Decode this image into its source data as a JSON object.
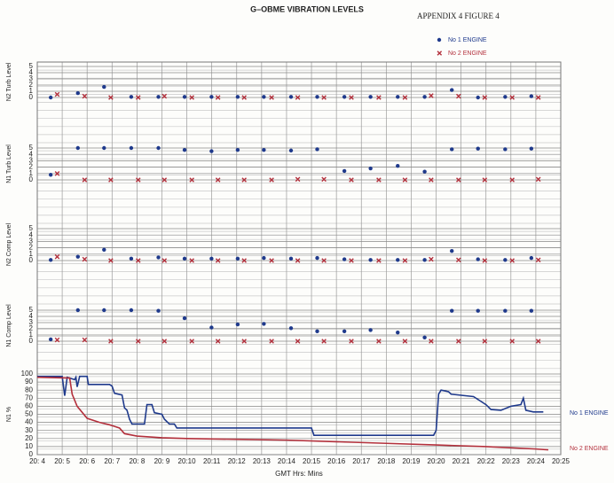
{
  "header": {
    "title": "G–OBME VIBRATION LEVELS",
    "figure": "APPENDIX 4  FIGURE   4"
  },
  "chart_data": [
    {
      "type": "scatter",
      "y_label": "N2 Turb Level",
      "ylim": [
        0,
        5
      ],
      "yticks": [
        0,
        1,
        2,
        3,
        4,
        5
      ],
      "series": [
        {
          "name": "No 1 ENGINE",
          "color": "#1f3a8c",
          "marker": "o",
          "x": [
            4.54,
            5.63,
            6.68,
            7.77,
            8.86,
            9.91,
            10.99,
            12.04,
            13.09,
            14.18,
            15.23,
            16.32,
            17.37,
            18.46,
            19.54,
            20.63,
            21.68,
            22.77,
            23.82
          ],
          "values": [
            0,
            0.7,
            1.7,
            0.1,
            0.1,
            0.1,
            0.1,
            0.1,
            0.1,
            0.1,
            0.1,
            0.1,
            0.1,
            0.1,
            0.1,
            1.2,
            0,
            0.1,
            0.2
          ]
        },
        {
          "name": "No 2 ENGINE",
          "color": "#b3303c",
          "marker": "x",
          "x": [
            4.8,
            5.9,
            6.95,
            8.05,
            9.1,
            10.2,
            11.25,
            12.3,
            13.4,
            14.45,
            15.5,
            16.6,
            17.7,
            18.75,
            19.8,
            20.9,
            21.95,
            23.05,
            24.1
          ],
          "values": [
            0.5,
            0.2,
            0,
            0,
            0.2,
            0,
            0,
            0,
            0,
            0,
            0,
            0,
            0,
            0,
            0.3,
            0.2,
            0,
            0,
            0
          ]
        }
      ]
    },
    {
      "type": "scatter",
      "y_label": "N1 Turb Level",
      "ylim": [
        0,
        5
      ],
      "yticks": [
        0,
        1,
        2,
        3,
        4,
        5
      ],
      "series": [
        {
          "name": "No 1 ENGINE",
          "color": "#1f3a8c",
          "marker": "o",
          "x": [
            4.54,
            5.63,
            6.68,
            7.77,
            8.86,
            9.91,
            10.99,
            12.04,
            13.09,
            14.18,
            15.23,
            16.32,
            17.37,
            18.46,
            19.54,
            20.63,
            21.68,
            22.77,
            23.82
          ],
          "values": [
            0.8,
            5,
            5,
            5,
            5,
            4.7,
            4.5,
            4.7,
            4.7,
            4.6,
            4.8,
            1.4,
            1.8,
            2.2,
            1.3,
            4.8,
            4.9,
            4.8,
            4.9
          ]
        },
        {
          "name": "No 2 ENGINE",
          "color": "#b3303c",
          "marker": "x",
          "x": [
            4.8,
            5.9,
            6.95,
            8.05,
            9.1,
            10.2,
            11.25,
            12.3,
            13.4,
            14.45,
            15.5,
            16.6,
            17.7,
            18.75,
            19.8,
            20.9,
            21.95,
            23.05,
            24.1
          ],
          "values": [
            1,
            0,
            0,
            0,
            0,
            0,
            0,
            0,
            0,
            0.1,
            0.1,
            0,
            0,
            0,
            0,
            0,
            0,
            0,
            0.1
          ]
        }
      ]
    },
    {
      "type": "scatter",
      "y_label": "N2 Comp Level",
      "ylim": [
        0,
        5
      ],
      "yticks": [
        0,
        1,
        2,
        3,
        4,
        5
      ],
      "series": [
        {
          "name": "No 1 ENGINE",
          "color": "#1f3a8c",
          "marker": "o",
          "x": [
            4.54,
            5.63,
            6.68,
            7.77,
            8.86,
            9.91,
            10.99,
            12.04,
            13.09,
            14.18,
            15.23,
            16.32,
            17.37,
            18.46,
            19.54,
            20.63,
            21.68,
            22.77,
            23.82
          ],
          "values": [
            0.1,
            0.6,
            1.7,
            0.3,
            0.5,
            0.3,
            0.3,
            0.3,
            0.4,
            0.3,
            0.4,
            0.2,
            0.1,
            0.1,
            0.1,
            1.5,
            0.2,
            0.1,
            0.4
          ]
        },
        {
          "name": "No 2 ENGINE",
          "color": "#b3303c",
          "marker": "x",
          "x": [
            4.8,
            5.9,
            6.95,
            8.05,
            9.1,
            10.2,
            11.25,
            12.3,
            13.4,
            14.45,
            15.5,
            16.6,
            17.7,
            18.75,
            19.8,
            20.9,
            21.95,
            23.05,
            24.1
          ],
          "values": [
            0.6,
            0.2,
            0,
            0,
            0,
            0,
            0,
            0,
            0,
            0,
            0,
            0,
            0,
            0,
            0.2,
            0.1,
            0,
            0,
            0.1
          ]
        }
      ]
    },
    {
      "type": "scatter",
      "y_label": "N1 Comp Level",
      "ylim": [
        0,
        5
      ],
      "yticks": [
        0,
        1,
        2,
        3,
        4,
        5
      ],
      "series": [
        {
          "name": "No 1 ENGINE",
          "color": "#1f3a8c",
          "marker": "o",
          "x": [
            4.54,
            5.63,
            6.68,
            7.77,
            8.86,
            9.91,
            10.99,
            12.04,
            13.09,
            14.18,
            15.23,
            16.32,
            17.37,
            18.46,
            19.54,
            20.63,
            21.68,
            22.77,
            23.82
          ],
          "values": [
            0.3,
            5,
            5,
            5,
            4.9,
            3.7,
            2.2,
            2.7,
            2.8,
            2.1,
            1.6,
            1.6,
            1.8,
            1.4,
            0.6,
            4.9,
            4.9,
            4.9,
            4.9
          ]
        },
        {
          "name": "No 2 ENGINE",
          "color": "#b3303c",
          "marker": "x",
          "x": [
            4.8,
            5.9,
            6.95,
            8.05,
            9.1,
            10.2,
            11.25,
            12.3,
            13.4,
            14.45,
            15.5,
            16.6,
            17.7,
            18.75,
            19.8,
            20.9,
            21.95,
            23.05,
            24.1
          ],
          "values": [
            0.2,
            0.2,
            0,
            0,
            0,
            0,
            0,
            0,
            0,
            0,
            0,
            0,
            0,
            0,
            0,
            0,
            0,
            0,
            0
          ]
        }
      ]
    },
    {
      "type": "line",
      "y_label": "N1 %",
      "x_label": "GMT Hrs: Mins",
      "xlim": [
        4,
        25
      ],
      "ylim": [
        0,
        100
      ],
      "yticks": [
        0,
        10,
        20,
        30,
        40,
        50,
        60,
        70,
        80,
        90,
        100
      ],
      "xticks": [
        {
          "value": 4,
          "label": "20: 4"
        },
        {
          "value": 5,
          "label": "20: 5"
        },
        {
          "value": 6,
          "label": "20: 6"
        },
        {
          "value": 7,
          "label": "20: 7"
        },
        {
          "value": 8,
          "label": "20: 8"
        },
        {
          "value": 9,
          "label": "20: 9"
        },
        {
          "value": 10,
          "label": "20:10"
        },
        {
          "value": 11,
          "label": "20:11"
        },
        {
          "value": 12,
          "label": "20:12"
        },
        {
          "value": 13,
          "label": "20:13"
        },
        {
          "value": 14,
          "label": "20:14"
        },
        {
          "value": 15,
          "label": "20:15"
        },
        {
          "value": 16,
          "label": "20:16"
        },
        {
          "value": 17,
          "label": "20:17"
        },
        {
          "value": 18,
          "label": "20:18"
        },
        {
          "value": 19,
          "label": "20:19"
        },
        {
          "value": 20,
          "label": "20:20"
        },
        {
          "value": 21,
          "label": "20:21"
        },
        {
          "value": 22,
          "label": "20:22"
        },
        {
          "value": 23,
          "label": "20:23"
        },
        {
          "value": 24,
          "label": "20:24"
        },
        {
          "value": 25,
          "label": "20:25"
        }
      ],
      "series": [
        {
          "name": "No 1 ENGINE",
          "color": "#1f3a8c",
          "x": [
            4.0,
            5.0,
            5.1,
            5.2,
            5.5,
            5.55,
            5.6,
            5.7,
            6.0,
            6.05,
            6.9,
            7.0,
            7.1,
            7.4,
            7.5,
            7.6,
            7.7,
            7.8,
            8.3,
            8.4,
            8.6,
            8.7,
            9.0,
            9.1,
            9.3,
            9.5,
            9.6,
            15.0,
            15.1,
            19.9,
            20.0,
            20.1,
            20.2,
            20.5,
            20.6,
            21.5,
            22.0,
            22.2,
            22.6,
            23.0,
            23.4,
            23.5,
            23.6,
            23.9,
            24.3
          ],
          "values": [
            97,
            97,
            73,
            96,
            93,
            96,
            84,
            97,
            97,
            87,
            87,
            85,
            76,
            74,
            58,
            55,
            44,
            38,
            38,
            62,
            62,
            52,
            50,
            44,
            38,
            38,
            33,
            33,
            24,
            24,
            30,
            75,
            80,
            78,
            75,
            72,
            62,
            56,
            55,
            60,
            62,
            70,
            55,
            53,
            53
          ]
        },
        {
          "name": "No 2 ENGINE",
          "color": "#b3303c",
          "x": [
            4.0,
            5.3,
            5.4,
            5.6,
            6.0,
            6.5,
            6.9,
            7.3,
            7.5,
            8.0,
            9.0,
            10.0,
            12.0,
            14.0,
            16.0,
            18.0,
            20.0,
            22.0,
            24.0,
            24.5
          ],
          "values": [
            96,
            95,
            75,
            60,
            45,
            40,
            37,
            33,
            26,
            23,
            21,
            20,
            19,
            18,
            16,
            14,
            12,
            10,
            7,
            6
          ]
        }
      ]
    }
  ]
}
